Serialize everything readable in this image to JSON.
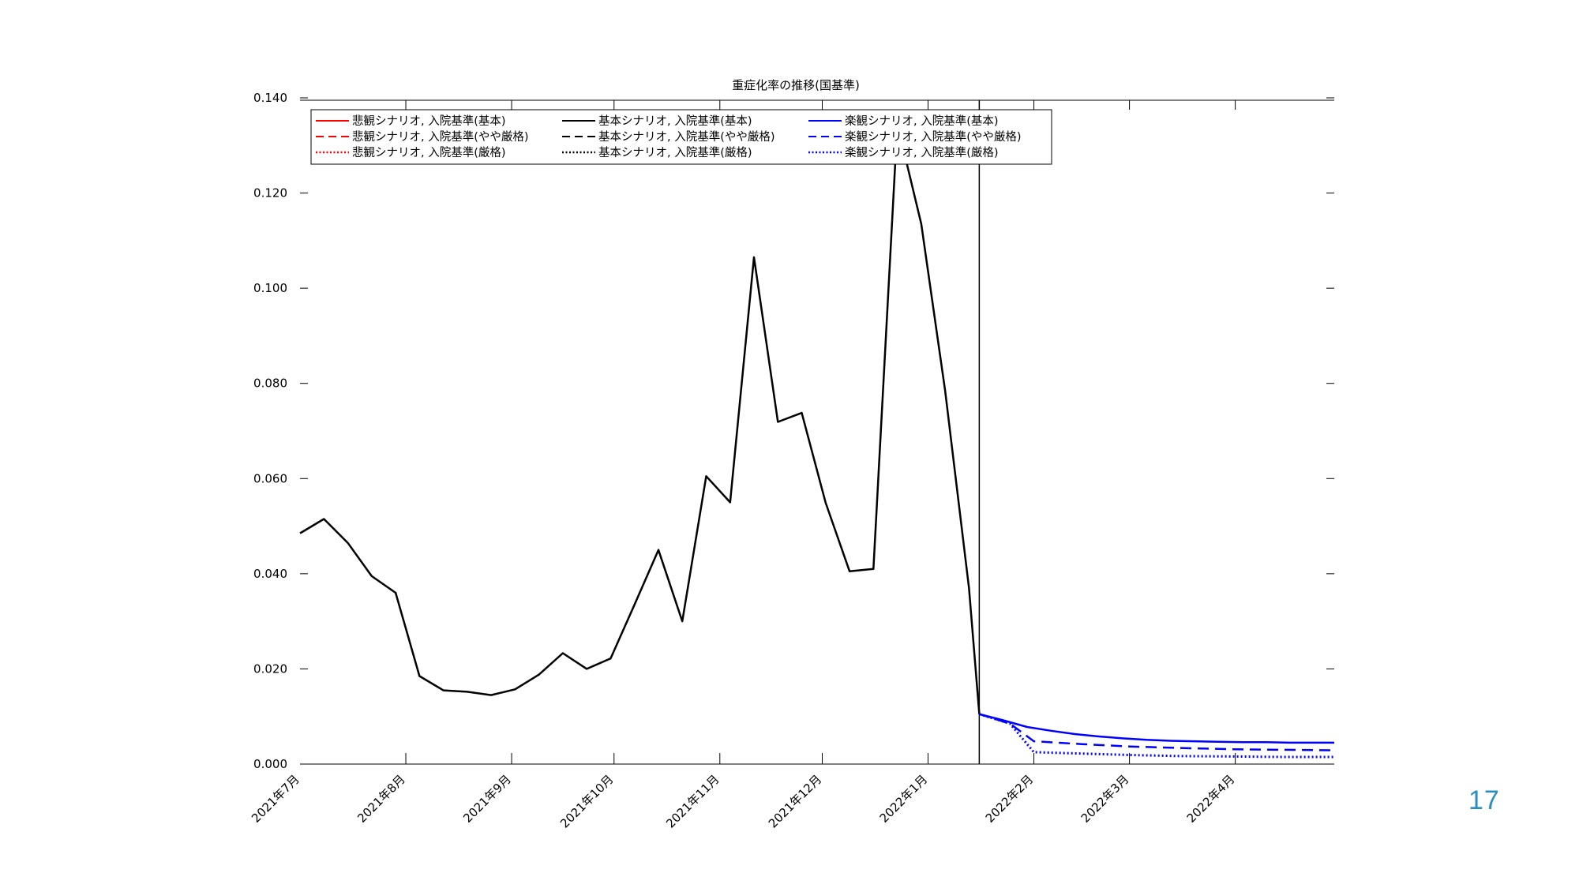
{
  "slide": {
    "number": "17"
  },
  "chart_data": {
    "type": "line",
    "title": "重症化率の推移(国基準)",
    "xlabel": "",
    "ylabel": "",
    "ylim": [
      0,
      0.14
    ],
    "yticks": [
      "0.000",
      "0.020",
      "0.040",
      "0.060",
      "0.080",
      "0.100",
      "0.120",
      "0.140"
    ],
    "ytick_values": [
      0,
      0.02,
      0.04,
      0.06,
      0.08,
      0.1,
      0.12,
      0.14
    ],
    "x_start": "2021-07-01",
    "x_end": "2022-04-30",
    "xticks": [
      {
        "label": "2021年7月",
        "date": "2021-07-01"
      },
      {
        "label": "2021年8月",
        "date": "2021-08-01"
      },
      {
        "label": "2021年9月",
        "date": "2021-09-01"
      },
      {
        "label": "2021年10月",
        "date": "2021-10-01"
      },
      {
        "label": "2021年11月",
        "date": "2021-11-01"
      },
      {
        "label": "2021年12月",
        "date": "2021-12-01"
      },
      {
        "label": "2022年1月",
        "date": "2022-01-01"
      },
      {
        "label": "2022年2月",
        "date": "2022-02-01"
      },
      {
        "label": "2022年3月",
        "date": "2022-03-01"
      },
      {
        "label": "2022年4月",
        "date": "2022-04-01"
      }
    ],
    "vertical_line_date": "2022-01-16",
    "grid": false,
    "legend_position": "top-left",
    "legend": [
      {
        "label": "悲観シナリオ, 入院基準(基本)",
        "color": "#ff0000",
        "style": "solid"
      },
      {
        "label": "基本シナリオ, 入院基準(基本)",
        "color": "#000000",
        "style": "solid"
      },
      {
        "label": "楽観シナリオ, 入院基準(基本)",
        "color": "#0000ff",
        "style": "solid"
      },
      {
        "label": "悲観シナリオ, 入院基準(やや厳格)",
        "color": "#ff0000",
        "style": "dashed"
      },
      {
        "label": "基本シナリオ, 入院基準(やや厳格)",
        "color": "#000000",
        "style": "dashed"
      },
      {
        "label": "楽観シナリオ, 入院基準(やや厳格)",
        "color": "#0000ff",
        "style": "dashed"
      },
      {
        "label": "悲観シナリオ, 入院基準(厳格)",
        "color": "#ff0000",
        "style": "dotted"
      },
      {
        "label": "基本シナリオ, 入院基準(厳格)",
        "color": "#000000",
        "style": "dotted"
      },
      {
        "label": "楽観シナリオ, 入院基準(厳格)",
        "color": "#0000ff",
        "style": "dotted"
      }
    ],
    "series": [
      {
        "color": "#000000",
        "style": "solid",
        "x": [
          "2021-07-01",
          "2021-07-08",
          "2021-07-15",
          "2021-07-22",
          "2021-07-29",
          "2021-08-05",
          "2021-08-12",
          "2021-08-19",
          "2021-08-26",
          "2021-09-02",
          "2021-09-09",
          "2021-09-16",
          "2021-09-23",
          "2021-09-30",
          "2021-10-07",
          "2021-10-14",
          "2021-10-21",
          "2021-10-28",
          "2021-11-04",
          "2021-11-11",
          "2021-11-18",
          "2021-11-25",
          "2021-12-02",
          "2021-12-09",
          "2021-12-16",
          "2021-12-23",
          "2021-12-30",
          "2022-01-06",
          "2022-01-13",
          "2022-01-16"
        ],
        "y": [
          0.0485,
          0.0515,
          0.0465,
          0.0395,
          0.036,
          0.0185,
          0.0155,
          0.0152,
          0.0145,
          0.0157,
          0.0188,
          0.0233,
          0.02,
          0.0222,
          0.0335,
          0.045,
          0.03,
          0.0605,
          0.055,
          0.1065,
          0.0719,
          0.0738,
          0.0549,
          0.0405,
          0.041,
          0.1345,
          0.1135,
          0.0785,
          0.0369,
          0.0105
        ]
      },
      {
        "color": "#0000ff",
        "style": "solid",
        "x": [
          "2022-01-16",
          "2022-01-23",
          "2022-01-30",
          "2022-02-06",
          "2022-02-13",
          "2022-02-20",
          "2022-02-27",
          "2022-03-06",
          "2022-03-13",
          "2022-03-20",
          "2022-03-27",
          "2022-04-03",
          "2022-04-10",
          "2022-04-17",
          "2022-04-24",
          "2022-04-30"
        ],
        "y": [
          0.0105,
          0.0092,
          0.0078,
          0.007,
          0.0063,
          0.0058,
          0.0054,
          0.0051,
          0.0049,
          0.0048,
          0.0047,
          0.0046,
          0.0046,
          0.0045,
          0.0045,
          0.0045
        ]
      },
      {
        "color": "#0000ff",
        "style": "dashed",
        "x": [
          "2022-01-16",
          "2022-01-25",
          "2022-02-01",
          "2022-02-15",
          "2022-03-01",
          "2022-03-15",
          "2022-04-01",
          "2022-04-15",
          "2022-04-30"
        ],
        "y": [
          0.0105,
          0.0085,
          0.0048,
          0.0042,
          0.0037,
          0.0034,
          0.0031,
          0.003,
          0.0029
        ]
      },
      {
        "color": "#0000ff",
        "style": "dotted",
        "x": [
          "2022-01-16",
          "2022-01-25",
          "2022-02-01",
          "2022-02-15",
          "2022-03-01",
          "2022-03-15",
          "2022-04-01",
          "2022-04-15",
          "2022-04-30"
        ],
        "y": [
          0.0105,
          0.0085,
          0.0025,
          0.0022,
          0.0019,
          0.0017,
          0.0016,
          0.0015,
          0.0015
        ]
      }
    ]
  }
}
